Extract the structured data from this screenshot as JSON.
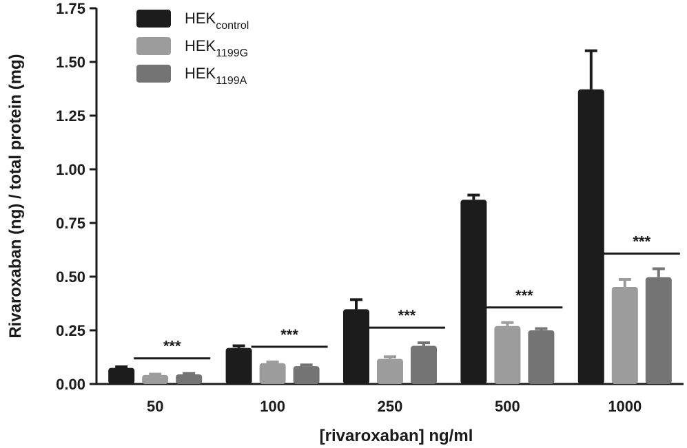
{
  "chart_data": {
    "type": "bar",
    "xlabel": "[rivaroxaban] ng/ml",
    "ylabel": "Rivaroxaban (ng) / total protein (mg)",
    "ylim": [
      0,
      1.75
    ],
    "yticks": [
      "0.00",
      "0.25",
      "0.50",
      "0.75",
      "1.00",
      "1.25",
      "1.50",
      "1.75"
    ],
    "categories": [
      "50",
      "100",
      "250",
      "500",
      "1000"
    ],
    "legend_position": "top-left",
    "grid": false,
    "series": [
      {
        "name": "HEK",
        "subscript": "control",
        "color": "#1c1c1c",
        "values": [
          0.075,
          0.168,
          0.348,
          0.858,
          1.372
        ],
        "errors": [
          0.005,
          0.01,
          0.045,
          0.022,
          0.18
        ]
      },
      {
        "name": "HEK",
        "subscript": "1199G",
        "color": "#9c9c9c",
        "values": [
          0.042,
          0.097,
          0.117,
          0.27,
          0.452
        ],
        "errors": [
          0.004,
          0.006,
          0.01,
          0.016,
          0.035
        ]
      },
      {
        "name": "HEK",
        "subscript": "1199A",
        "color": "#747474",
        "values": [
          0.045,
          0.083,
          0.178,
          0.25,
          0.497
        ],
        "errors": [
          0.004,
          0.006,
          0.014,
          0.008,
          0.04
        ]
      }
    ],
    "annotations": [
      {
        "category": "50",
        "text": "***"
      },
      {
        "category": "100",
        "text": "***"
      },
      {
        "category": "250",
        "text": "***"
      },
      {
        "category": "500",
        "text": "***"
      },
      {
        "category": "1000",
        "text": "***"
      }
    ]
  }
}
